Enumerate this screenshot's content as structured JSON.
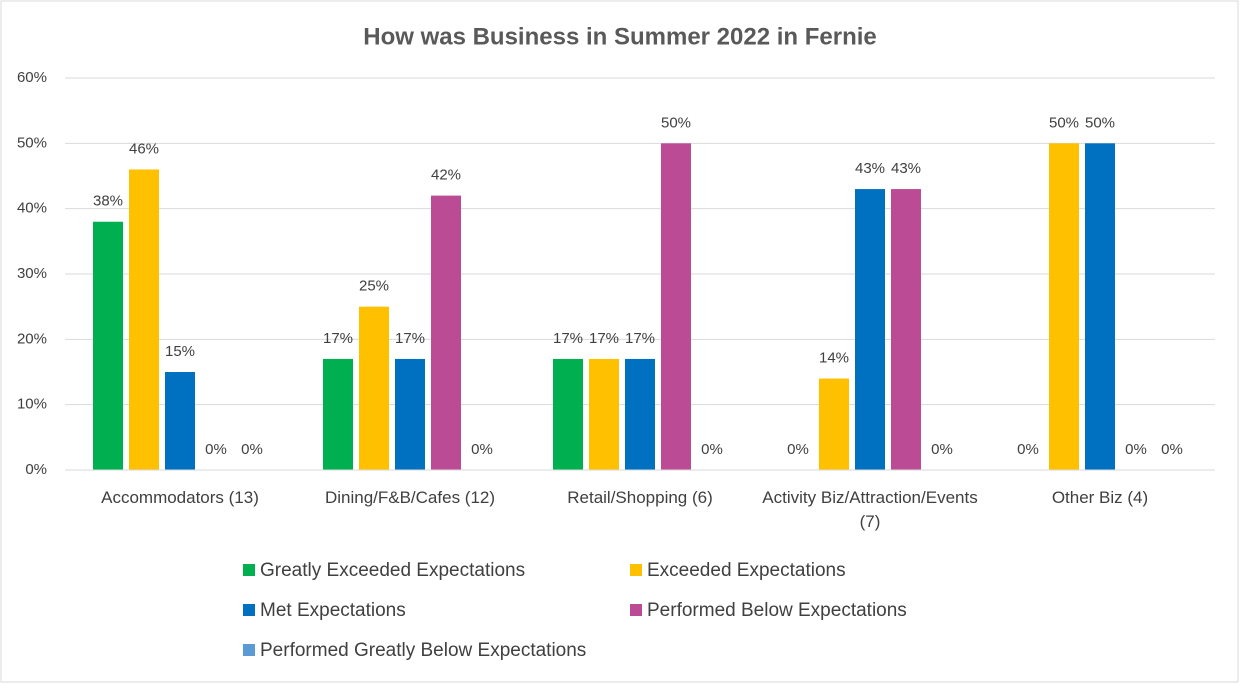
{
  "chart_data": {
    "type": "bar",
    "title": "How was Business in Summer 2022 in Fernie",
    "categories": [
      "Accommodators (13)",
      "Dining/F&B/Cafes (12)",
      "Retail/Shopping (6)",
      "Activity Biz/Attraction/Events (7)",
      "Other Biz (4)"
    ],
    "series": [
      {
        "name": "Greatly Exceeded Expectations",
        "color": "#00b050",
        "values": [
          38,
          17,
          17,
          0,
          0
        ],
        "value_labels": [
          "38%",
          "17%",
          "17%",
          "0%",
          "0%"
        ]
      },
      {
        "name": "Exceeded Expectations",
        "color": "#ffc000",
        "values": [
          46,
          25,
          17,
          14,
          50
        ],
        "value_labels": [
          "46%",
          "25%",
          "17%",
          "14%",
          "50%"
        ]
      },
      {
        "name": "Met Expectations",
        "color": "#0070c0",
        "values": [
          15,
          17,
          17,
          43,
          50
        ],
        "value_labels": [
          "15%",
          "17%",
          "17%",
          "43%",
          "50%"
        ]
      },
      {
        "name": "Performed Below Expectations",
        "color": "#bc4b95",
        "values": [
          0,
          42,
          50,
          43,
          0
        ],
        "value_labels": [
          "0%",
          "42%",
          "50%",
          "43%",
          "0%"
        ]
      },
      {
        "name": "Performed Greatly Below Expectations",
        "color": "#5b9bd5",
        "values": [
          0,
          0,
          0,
          0,
          0
        ],
        "value_labels": [
          "0%",
          "0%",
          "0%",
          "0%",
          "0%"
        ]
      }
    ],
    "ylim": [
      0,
      60
    ],
    "yticks": [
      {
        "value": 0,
        "label": "0%"
      },
      {
        "value": 10,
        "label": "10%"
      },
      {
        "value": 20,
        "label": "20%"
      },
      {
        "value": 30,
        "label": "30%"
      },
      {
        "value": 40,
        "label": "40%"
      },
      {
        "value": 50,
        "label": "50%"
      },
      {
        "value": 60,
        "label": "60%"
      }
    ],
    "grid": true
  }
}
